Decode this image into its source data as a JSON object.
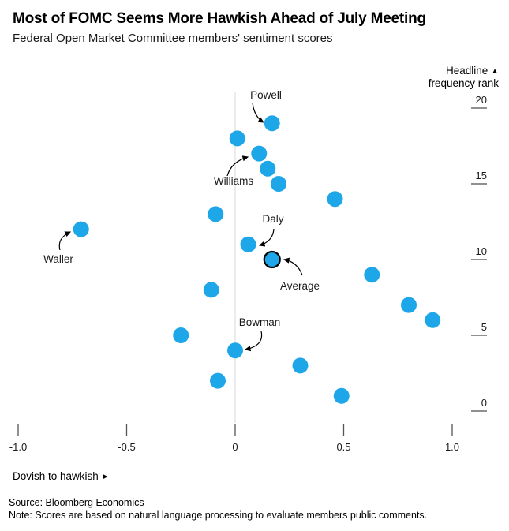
{
  "header": {
    "title": "Most of FOMC Seems More Hawkish Ahead of July Meeting",
    "subtitle": "Federal Open Market Committee members' sentiment scores"
  },
  "y_axis": {
    "line1": "Headline",
    "up_icon": "▲",
    "line2": "frequency rank"
  },
  "x_axis": {
    "caption": "Dovish to hawkish",
    "right_icon": "►"
  },
  "footer": {
    "source": "Source: Bloomberg Economics",
    "note": "Note: Scores are based on natural language processing to evaluate members public comments."
  },
  "chart_data": {
    "type": "scatter",
    "title": "Most of FOMC Seems More Hawkish Ahead of July Meeting",
    "subtitle": "Federal Open Market Committee members' sentiment scores",
    "xlabel": "Dovish to hawkish ►",
    "ylabel": "Headline ▲ frequency rank",
    "xlim": [
      -1.15,
      1.26
    ],
    "ylim": [
      -1,
      21
    ],
    "grid": "single vertical gridline at x=0",
    "legend": "none",
    "x_ticks": {
      "labels": [
        "-1.0",
        "-0.5",
        "0",
        "0.5",
        "1.0"
      ],
      "values": [
        -1,
        -0.5,
        0,
        0.5,
        1
      ]
    },
    "y_ticks": {
      "labels": [
        "20",
        "15",
        "10",
        "5",
        "0"
      ],
      "values": [
        20,
        15,
        10,
        5,
        0
      ]
    },
    "colors": {
      "dot": "#1ea7e8",
      "average_outline": "#000000",
      "gridline": "#d9d9d9",
      "tick": "#4d4d4d",
      "text": "#000000"
    },
    "points": [
      {
        "label": "Powell",
        "score": 0.17,
        "rank": 19
      },
      {
        "score": 0.01,
        "rank": 18
      },
      {
        "label": "Williams",
        "score": 0.11,
        "rank": 17
      },
      {
        "score": 0.15,
        "rank": 16
      },
      {
        "score": 0.2,
        "rank": 15
      },
      {
        "score": 0.46,
        "rank": 14
      },
      {
        "score": -0.09,
        "rank": 13
      },
      {
        "label": "Waller",
        "score": -0.71,
        "rank": 12
      },
      {
        "label": "Daly",
        "score": 0.06,
        "rank": 11
      },
      {
        "label": "Average",
        "score": 0.17,
        "rank": 10,
        "is_average": true
      },
      {
        "score": 0.63,
        "rank": 9
      },
      {
        "score": -0.11,
        "rank": 8
      },
      {
        "score": 0.8,
        "rank": 7
      },
      {
        "score": 0.91,
        "rank": 6
      },
      {
        "score": -0.25,
        "rank": 5
      },
      {
        "label": "Bowman",
        "score": 0.0,
        "rank": 4
      },
      {
        "score": 0.3,
        "rank": 3
      },
      {
        "score": -0.08,
        "rank": 2
      },
      {
        "score": 0.49,
        "rank": 1
      }
    ]
  }
}
